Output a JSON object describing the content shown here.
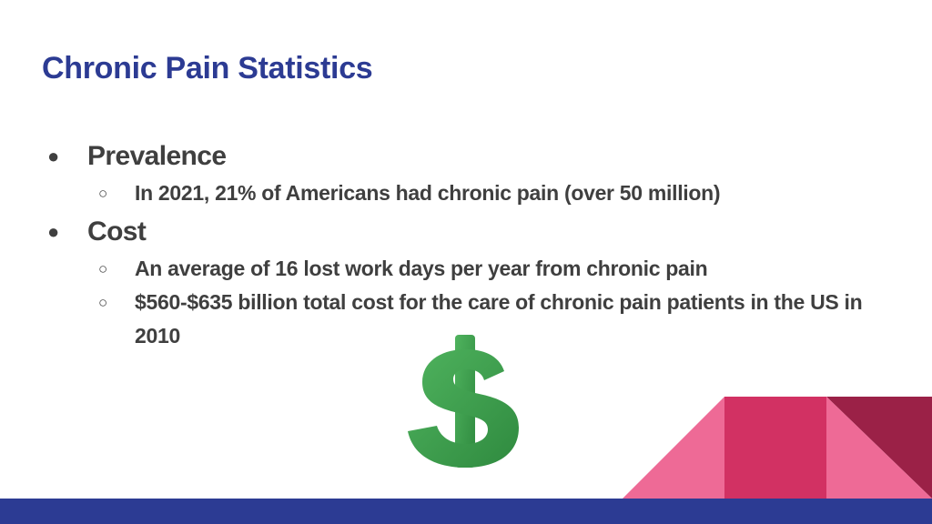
{
  "slide": {
    "title": "Chronic Pain Statistics",
    "sections": [
      {
        "heading": "Prevalence",
        "items": [
          "In 2021, 21% of Americans had chronic pain (over 50 million)"
        ]
      },
      {
        "heading": "Cost",
        "items": [
          "An average of 16 lost work days per year from chronic pain",
          "$560-$635 billion total cost for the care of chronic pain patients in the US in 2010"
        ]
      }
    ],
    "bullet_level1": "●",
    "bullet_level2": "○",
    "icon": "dollar-sign-icon",
    "colors": {
      "title": "#2c3b93",
      "text": "#3f3f3f",
      "dollar_green": "#3a9a4b",
      "accent_pink_light": "#ee6a96",
      "accent_pink_dark": "#d23163",
      "accent_maroon": "#9b2147",
      "footer_bar": "#2c3b93"
    }
  }
}
